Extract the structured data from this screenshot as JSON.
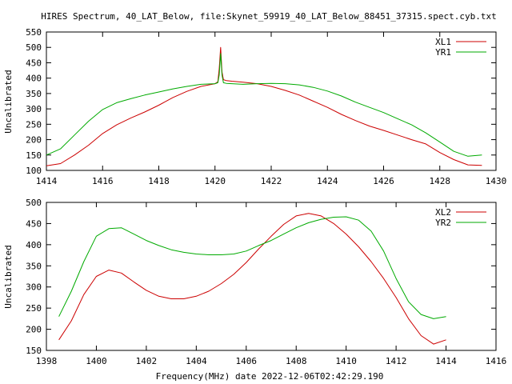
{
  "title": "HIRES Spectrum, 40_LAT_Below, file:Skynet_59919_40_LAT_Below_88451_37315.spect.cyb.txt",
  "colors": {
    "xl": "#cc0000",
    "yr": "#00aa00",
    "axis": "#000000"
  },
  "chart_data": [
    {
      "type": "line",
      "ylabel": "Uncalibrated",
      "xlabel": "",
      "xlim": [
        1414,
        1430
      ],
      "ylim": [
        100,
        550
      ],
      "xticks": [
        1414,
        1416,
        1418,
        1420,
        1422,
        1424,
        1426,
        1428,
        1430
      ],
      "yticks": [
        100,
        150,
        200,
        250,
        300,
        350,
        400,
        450,
        500,
        550
      ],
      "legend_position": "top-right",
      "series": [
        {
          "name": "XL1",
          "color": "#cc0000",
          "x": [
            1414.0,
            1414.5,
            1415.0,
            1415.5,
            1416.0,
            1416.5,
            1417.0,
            1417.5,
            1418.0,
            1418.5,
            1419.0,
            1419.5,
            1420.0,
            1420.1,
            1420.15,
            1420.2,
            1420.25,
            1420.3,
            1420.4,
            1420.6,
            1421.0,
            1421.5,
            1422.0,
            1422.5,
            1423.0,
            1423.5,
            1424.0,
            1424.5,
            1425.0,
            1425.5,
            1426.0,
            1426.5,
            1427.0,
            1427.5,
            1428.0,
            1428.5,
            1429.0,
            1429.5
          ],
          "values": [
            115,
            122,
            150,
            182,
            220,
            248,
            270,
            290,
            312,
            337,
            357,
            373,
            382,
            388,
            430,
            500,
            420,
            395,
            392,
            390,
            387,
            382,
            373,
            360,
            345,
            325,
            305,
            282,
            262,
            244,
            230,
            215,
            200,
            186,
            158,
            135,
            118,
            116
          ]
        },
        {
          "name": "YR1",
          "color": "#00aa00",
          "x": [
            1414.0,
            1414.5,
            1415.0,
            1415.5,
            1416.0,
            1416.5,
            1417.0,
            1417.5,
            1418.0,
            1418.5,
            1419.0,
            1419.5,
            1420.0,
            1420.1,
            1420.15,
            1420.2,
            1420.25,
            1420.3,
            1420.4,
            1420.6,
            1421.0,
            1421.5,
            1422.0,
            1422.5,
            1423.0,
            1423.5,
            1424.0,
            1424.5,
            1425.0,
            1425.5,
            1426.0,
            1426.5,
            1427.0,
            1427.5,
            1428.0,
            1428.5,
            1429.0,
            1429.5
          ],
          "values": [
            150,
            170,
            215,
            260,
            298,
            320,
            333,
            345,
            355,
            365,
            373,
            380,
            382,
            385,
            410,
            480,
            410,
            385,
            383,
            382,
            380,
            382,
            383,
            382,
            378,
            370,
            358,
            342,
            322,
            305,
            288,
            268,
            248,
            222,
            192,
            162,
            146,
            150
          ]
        }
      ]
    },
    {
      "type": "line",
      "ylabel": "Uncalibrated",
      "xlabel": "Frequency(MHz) date 2022-12-06T02:42:29.190",
      "xlim": [
        1398,
        1416
      ],
      "ylim": [
        150,
        500
      ],
      "xticks": [
        1398,
        1400,
        1402,
        1404,
        1406,
        1408,
        1410,
        1412,
        1414,
        1416
      ],
      "yticks": [
        150,
        200,
        250,
        300,
        350,
        400,
        450,
        500
      ],
      "legend_position": "top-right",
      "series": [
        {
          "name": "XL2",
          "color": "#cc0000",
          "x": [
            1398.5,
            1399.0,
            1399.5,
            1400.0,
            1400.5,
            1401.0,
            1401.5,
            1402.0,
            1402.5,
            1403.0,
            1403.5,
            1404.0,
            1404.5,
            1405.0,
            1405.5,
            1406.0,
            1406.5,
            1407.0,
            1407.5,
            1408.0,
            1408.5,
            1409.0,
            1409.5,
            1410.0,
            1410.5,
            1411.0,
            1411.5,
            1412.0,
            1412.5,
            1413.0,
            1413.5,
            1414.0
          ],
          "values": [
            175,
            220,
            282,
            325,
            340,
            333,
            312,
            292,
            278,
            272,
            272,
            278,
            290,
            308,
            330,
            358,
            390,
            420,
            448,
            468,
            474,
            468,
            450,
            425,
            395,
            360,
            320,
            275,
            225,
            185,
            165,
            175
          ]
        },
        {
          "name": "YR2",
          "color": "#00aa00",
          "x": [
            1398.5,
            1399.0,
            1399.5,
            1400.0,
            1400.5,
            1401.0,
            1401.5,
            1402.0,
            1402.5,
            1403.0,
            1403.5,
            1404.0,
            1404.5,
            1405.0,
            1405.5,
            1406.0,
            1406.5,
            1407.0,
            1407.5,
            1408.0,
            1408.5,
            1409.0,
            1409.5,
            1410.0,
            1410.5,
            1411.0,
            1411.5,
            1412.0,
            1412.5,
            1413.0,
            1413.5,
            1414.0
          ],
          "values": [
            230,
            290,
            360,
            420,
            438,
            440,
            425,
            410,
            398,
            388,
            382,
            378,
            376,
            376,
            378,
            385,
            398,
            410,
            425,
            440,
            452,
            460,
            465,
            466,
            458,
            432,
            385,
            320,
            265,
            235,
            225,
            230
          ]
        }
      ]
    }
  ]
}
